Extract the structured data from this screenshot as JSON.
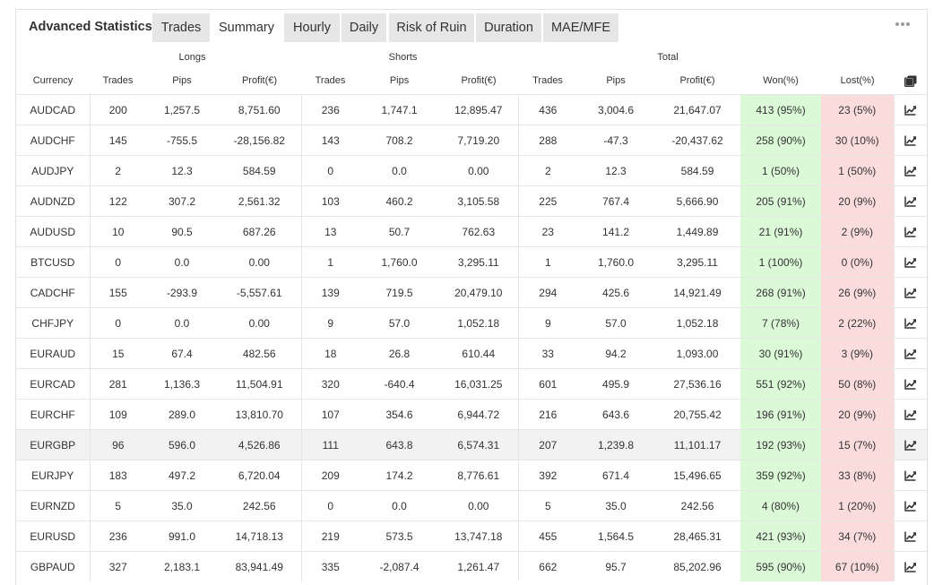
{
  "title": "Advanced Statistics",
  "tabs": [
    {
      "label": "Trades",
      "active": false
    },
    {
      "label": "Summary",
      "active": true
    },
    {
      "label": "Hourly",
      "active": false
    },
    {
      "label": "Daily",
      "active": false
    },
    {
      "label": "Risk of Ruin",
      "active": false
    },
    {
      "label": "Duration",
      "active": false
    },
    {
      "label": "MAE/MFE",
      "active": false
    }
  ],
  "menu_icon": "more-dots-icon",
  "table": {
    "groups": {
      "longs": "Longs",
      "shorts": "Shorts",
      "total": "Total"
    },
    "columns": {
      "currency": "Currency",
      "long_trades": "Trades",
      "long_pips": "Pips",
      "long_profit": "Profit(€)",
      "short_trades": "Trades",
      "short_pips": "Pips",
      "short_profit": "Profit(€)",
      "total_trades": "Trades",
      "total_pips": "Pips",
      "total_profit": "Profit(€)",
      "won": "Won(%)",
      "lost": "Lost(%)"
    },
    "copy_icon": "copy-icon",
    "row_icon": "chart-line-icon",
    "rows": [
      {
        "currency": "AUDCAD",
        "lt": "200",
        "lp": "1,257.5",
        "lpr": "8,751.60",
        "st": "236",
        "sp": "1,747.1",
        "spr": "12,895.47",
        "tt": "436",
        "tp": "3,004.6",
        "tpr": "21,647.07",
        "won": "413 (95%)",
        "lost": "23 (5%)"
      },
      {
        "currency": "AUDCHF",
        "lt": "145",
        "lp": "-755.5",
        "lpr": "-28,156.82",
        "st": "143",
        "sp": "708.2",
        "spr": "7,719.20",
        "tt": "288",
        "tp": "-47.3",
        "tpr": "-20,437.62",
        "won": "258 (90%)",
        "lost": "30 (10%)"
      },
      {
        "currency": "AUDJPY",
        "lt": "2",
        "lp": "12.3",
        "lpr": "584.59",
        "st": "0",
        "sp": "0.0",
        "spr": "0.00",
        "tt": "2",
        "tp": "12.3",
        "tpr": "584.59",
        "won": "1 (50%)",
        "lost": "1 (50%)"
      },
      {
        "currency": "AUDNZD",
        "lt": "122",
        "lp": "307.2",
        "lpr": "2,561.32",
        "st": "103",
        "sp": "460.2",
        "spr": "3,105.58",
        "tt": "225",
        "tp": "767.4",
        "tpr": "5,666.90",
        "won": "205 (91%)",
        "lost": "20 (9%)"
      },
      {
        "currency": "AUDUSD",
        "lt": "10",
        "lp": "90.5",
        "lpr": "687.26",
        "st": "13",
        "sp": "50.7",
        "spr": "762.63",
        "tt": "23",
        "tp": "141.2",
        "tpr": "1,449.89",
        "won": "21 (91%)",
        "lost": "2 (9%)"
      },
      {
        "currency": "BTCUSD",
        "lt": "0",
        "lp": "0.0",
        "lpr": "0.00",
        "st": "1",
        "sp": "1,760.0",
        "spr": "3,295.11",
        "tt": "1",
        "tp": "1,760.0",
        "tpr": "3,295.11",
        "won": "1 (100%)",
        "lost": "0 (0%)"
      },
      {
        "currency": "CADCHF",
        "lt": "155",
        "lp": "-293.9",
        "lpr": "-5,557.61",
        "st": "139",
        "sp": "719.5",
        "spr": "20,479.10",
        "tt": "294",
        "tp": "425.6",
        "tpr": "14,921.49",
        "won": "268 (91%)",
        "lost": "26 (9%)"
      },
      {
        "currency": "CHFJPY",
        "lt": "0",
        "lp": "0.0",
        "lpr": "0.00",
        "st": "9",
        "sp": "57.0",
        "spr": "1,052.18",
        "tt": "9",
        "tp": "57.0",
        "tpr": "1,052.18",
        "won": "7 (78%)",
        "lost": "2 (22%)"
      },
      {
        "currency": "EURAUD",
        "lt": "15",
        "lp": "67.4",
        "lpr": "482.56",
        "st": "18",
        "sp": "26.8",
        "spr": "610.44",
        "tt": "33",
        "tp": "94.2",
        "tpr": "1,093.00",
        "won": "30 (91%)",
        "lost": "3 (9%)"
      },
      {
        "currency": "EURCAD",
        "lt": "281",
        "lp": "1,136.3",
        "lpr": "11,504.91",
        "st": "320",
        "sp": "-640.4",
        "spr": "16,031.25",
        "tt": "601",
        "tp": "495.9",
        "tpr": "27,536.16",
        "won": "551 (92%)",
        "lost": "50 (8%)"
      },
      {
        "currency": "EURCHF",
        "lt": "109",
        "lp": "289.0",
        "lpr": "13,810.70",
        "st": "107",
        "sp": "354.6",
        "spr": "6,944.72",
        "tt": "216",
        "tp": "643.6",
        "tpr": "20,755.42",
        "won": "196 (91%)",
        "lost": "20 (9%)"
      },
      {
        "currency": "EURGBP",
        "lt": "96",
        "lp": "596.0",
        "lpr": "4,526.86",
        "st": "111",
        "sp": "643.8",
        "spr": "6,574.31",
        "tt": "207",
        "tp": "1,239.8",
        "tpr": "11,101.17",
        "won": "192 (93%)",
        "lost": "15 (7%)"
      },
      {
        "currency": "EURJPY",
        "lt": "183",
        "lp": "497.2",
        "lpr": "6,720.04",
        "st": "209",
        "sp": "174.2",
        "spr": "8,776.61",
        "tt": "392",
        "tp": "671.4",
        "tpr": "15,496.65",
        "won": "359 (92%)",
        "lost": "33 (8%)"
      },
      {
        "currency": "EURNZD",
        "lt": "5",
        "lp": "35.0",
        "lpr": "242.56",
        "st": "0",
        "sp": "0.0",
        "spr": "0.00",
        "tt": "5",
        "tp": "35.0",
        "tpr": "242.56",
        "won": "4 (80%)",
        "lost": "1 (20%)"
      },
      {
        "currency": "EURUSD",
        "lt": "236",
        "lp": "991.0",
        "lpr": "14,718.13",
        "st": "219",
        "sp": "573.5",
        "spr": "13,747.18",
        "tt": "455",
        "tp": "1,564.5",
        "tpr": "28,465.31",
        "won": "421 (93%)",
        "lost": "34 (7%)"
      },
      {
        "currency": "GBPAUD",
        "lt": "327",
        "lp": "2,183.1",
        "lpr": "83,941.49",
        "st": "335",
        "sp": "-2,087.4",
        "spr": "1,261.47",
        "tt": "662",
        "tp": "95.7",
        "tpr": "85,202.96",
        "won": "595 (90%)",
        "lost": "67 (10%)"
      }
    ]
  },
  "colors": {
    "positive": "#1aa14d",
    "negative": "#e8433b",
    "won_bg": "#dbf8d7",
    "lost_bg": "#fbdcdc",
    "tab_bg": "#e6e6e6"
  }
}
